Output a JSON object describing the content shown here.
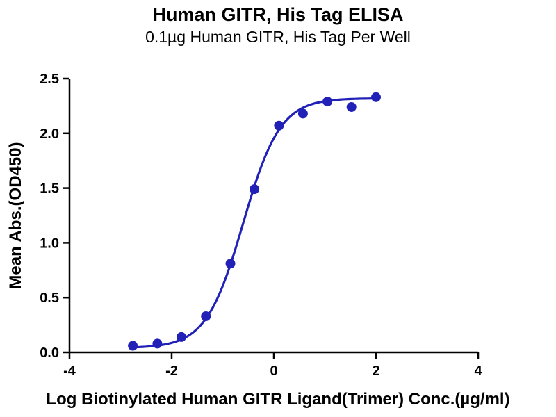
{
  "page": {
    "background": "#ffffff"
  },
  "chart_data": {
    "type": "scatter",
    "title": "Human GITR, His Tag ELISA",
    "subtitle": "0.1µg Human GITR, His Tag Per Well",
    "xlabel": "Log Biotinylated Human GITR Ligand(Trimer) Conc.(µg/ml)",
    "ylabel": "Mean Abs.(OD450)",
    "xlim": [
      -4,
      4
    ],
    "ylim": [
      0,
      2.5
    ],
    "xticks": [
      -4,
      -2,
      0,
      2,
      4
    ],
    "xtick_labels": [
      "-4",
      "-2",
      "0",
      "2",
      "4"
    ],
    "yticks": [
      0,
      0.5,
      1,
      1.5,
      2,
      2.5
    ],
    "ytick_labels": [
      "0.0",
      "0.5",
      "1.0",
      "1.5",
      "2.0",
      "2.5"
    ],
    "grid": false,
    "legend": "none",
    "points": {
      "x": [
        -2.76,
        -2.28,
        -1.81,
        -1.33,
        -0.85,
        -0.38,
        0.1,
        0.57,
        1.05,
        1.52,
        2.0
      ],
      "y": [
        0.06,
        0.08,
        0.14,
        0.33,
        0.81,
        1.49,
        2.07,
        2.18,
        2.29,
        2.24,
        2.33
      ]
    },
    "curve_fit": {
      "model": "4PL-sigmoid",
      "bottom": 0.04,
      "top": 2.32,
      "log_ec50": -0.6,
      "hill": 1.2,
      "x_range": [
        -2.76,
        2.0
      ]
    },
    "colors": {
      "curve": "#2121b8",
      "points": "#2121b8",
      "axis": "#000000",
      "text": "#000000"
    }
  }
}
